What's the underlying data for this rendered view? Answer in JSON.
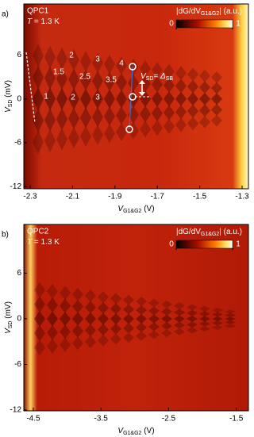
{
  "chart_data": [
    {
      "type": "heatmap",
      "panel_label": "a)",
      "device": "QPC1",
      "temperature": [
        "T",
        " = 1.3 K"
      ],
      "x_label": [
        "V",
        "G1&G2",
        " (V)"
      ],
      "y_label": [
        "V",
        "SD",
        " (mV)"
      ],
      "colorbar_label": [
        "|dG/dV",
        "G1&G2",
        "| (a.u.)"
      ],
      "clim": [
        0,
        1
      ],
      "colorbar_ticks": [
        0,
        1
      ],
      "xlim": [
        -2.33,
        -1.27
      ],
      "xticks": [
        -2.3,
        -2.1,
        -1.9,
        -1.7,
        -1.5,
        -1.3
      ],
      "ylim": [
        -12.3,
        13
      ],
      "yticks": [
        -12,
        -6,
        0,
        6
      ],
      "annotations": [
        "2",
        "3",
        "4",
        "1.5",
        "2.5",
        "3.5",
        "1",
        "2",
        "3"
      ],
      "equation": [
        "V",
        "SD",
        "= Δ",
        "SB"
      ]
    },
    {
      "type": "heatmap",
      "panel_label": "b)",
      "device": "QPC2",
      "temperature": [
        "T",
        " = 1.3 K"
      ],
      "x_label": [
        "V",
        "G1&G2",
        " (V)"
      ],
      "y_label": [
        "V",
        "SD",
        " (mV)"
      ],
      "colorbar_label": [
        "|dG/dV",
        "G1&G2",
        "| (a.u.)"
      ],
      "clim": [
        0,
        1
      ],
      "colorbar_ticks": [
        0,
        1
      ],
      "xlim": [
        -4.64,
        -1.32
      ],
      "xticks": [
        -4.5,
        -3.5,
        -2.5,
        -1.5
      ],
      "ylim": [
        -12.1,
        12.4
      ],
      "yticks": [
        -12,
        -6,
        0,
        6
      ]
    }
  ]
}
